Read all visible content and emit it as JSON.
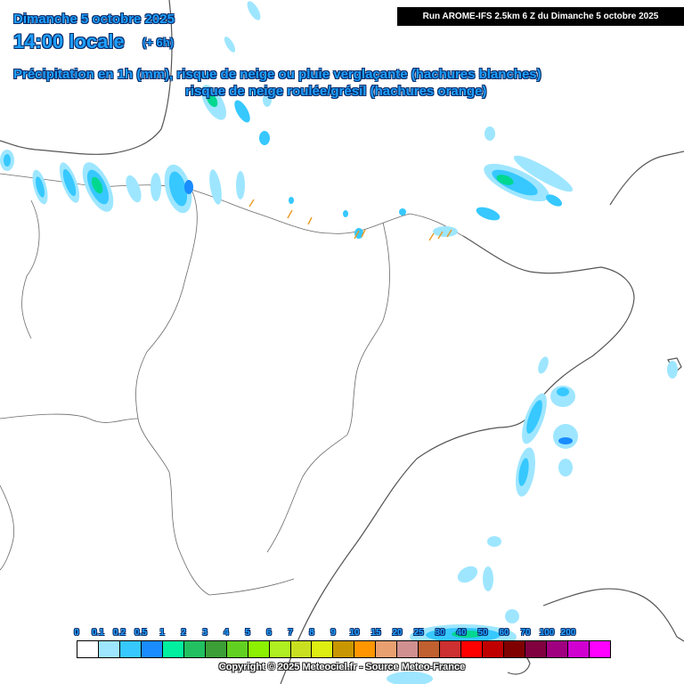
{
  "header": {
    "date": "Dimanche 5 octobre 2025",
    "time": "14:00 locale",
    "offset": "(+ 6h)",
    "line1": "Précipitation en 1h (mm), risque de neige ou pluie verglaçante (hachures blanches)",
    "line2": "risque de neige roulée/grésil (hachures orange)"
  },
  "run_info": "Run AROME-IFS 2.5km 6 Z du Dimanche 5 octobre 2025",
  "legend": {
    "labels": [
      "0",
      "0.1",
      "0.2",
      "0.5",
      "1",
      "2",
      "3",
      "4",
      "5",
      "6",
      "7",
      "8",
      "9",
      "10",
      "15",
      "20",
      "25",
      "30",
      "40",
      "50",
      "60",
      "70",
      "100",
      "200"
    ],
    "colors": [
      "#ffffff",
      "#9ee6ff",
      "#36c8ff",
      "#1a8cff",
      "#00f0a0",
      "#22c060",
      "#3c9e36",
      "#62d020",
      "#8cf000",
      "#b0f020",
      "#c8e020",
      "#ddee10",
      "#c89600",
      "#ff9600",
      "#e8a070",
      "#d09090",
      "#c06030",
      "#cc3030",
      "#ff0000",
      "#c00000",
      "#800000",
      "#800040",
      "#a00080",
      "#d000d0",
      "#ff00ff"
    ]
  },
  "copyright": "Copyright © 2025 Meteociel.fr - Source Meteo-France",
  "colors": {
    "title_text": "#1ea0ff",
    "title_outline": "#0a2a66",
    "precip_light": "#9ee6ff",
    "precip_mid": "#36c8ff",
    "precip_strong": "#1a8cff",
    "precip_peak": "#00d890",
    "graupel_hatch": "#e89a20"
  }
}
